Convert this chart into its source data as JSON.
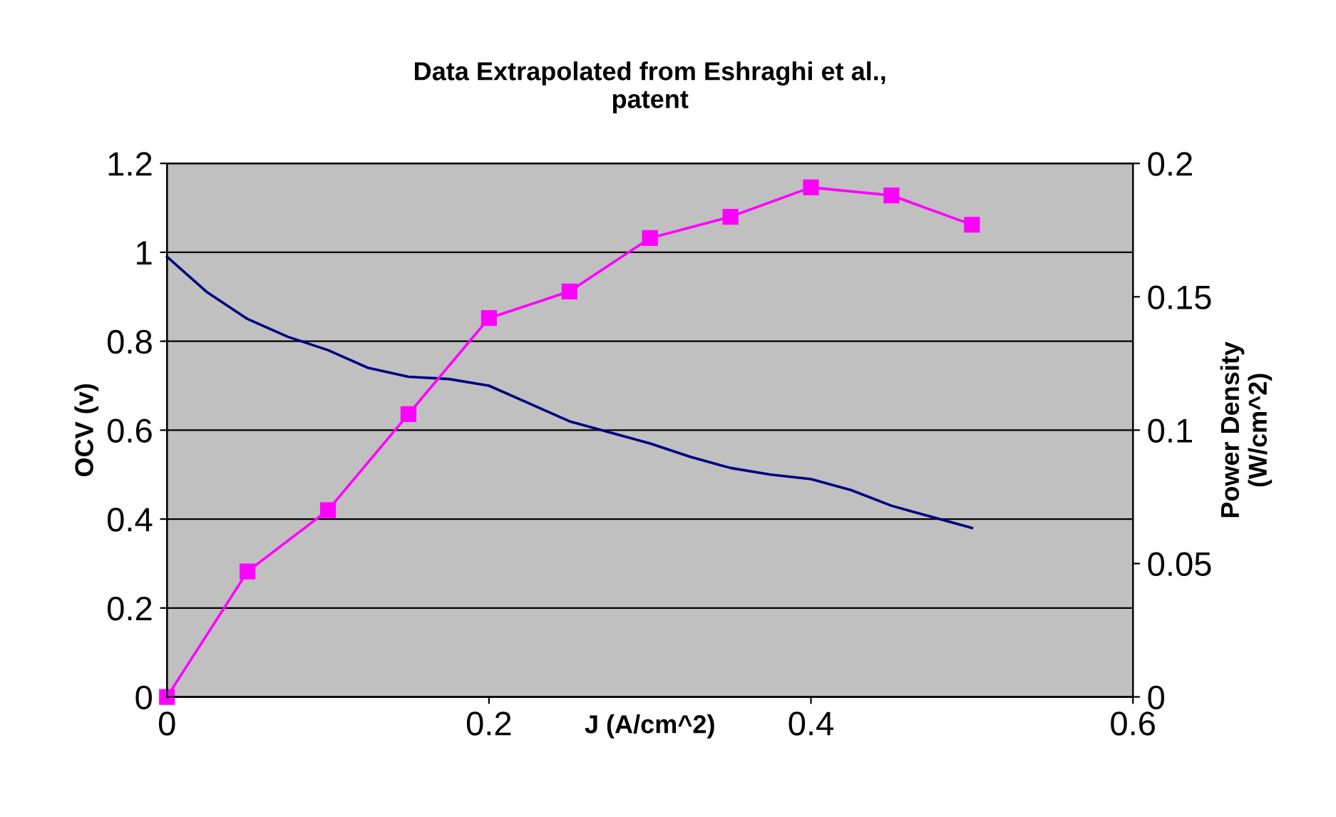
{
  "chart_data": {
    "type": "line",
    "title": "Data Extrapolated from Eshraghi et al.,\npatent",
    "xlabel": "J (A/cm^2)",
    "ylabel": "OCV (v)",
    "y2label": "Power Density\n(W/cm^2)",
    "xlim": [
      0,
      0.6
    ],
    "xticks": [
      0,
      0.2,
      0.4,
      0.6
    ],
    "ylim": [
      0,
      1.2
    ],
    "yticks": [
      0,
      0.2,
      0.4,
      0.6,
      0.8,
      1,
      1.2
    ],
    "y2lim": [
      0,
      0.2
    ],
    "y2ticks": [
      0,
      0.05,
      0.1,
      0.15,
      0.2
    ],
    "grid": "y",
    "legend": false,
    "series": [
      {
        "color": "#000080",
        "marker": "none",
        "x": [
          0,
          0.025,
          0.05,
          0.075,
          0.1,
          0.125,
          0.15,
          0.175,
          0.2,
          0.225,
          0.25,
          0.275,
          0.3,
          0.325,
          0.35,
          0.375,
          0.4,
          0.425,
          0.45,
          0.475,
          0.5
        ],
        "values": [
          0.99,
          0.91,
          0.85,
          0.81,
          0.78,
          0.74,
          0.72,
          0.715,
          0.7,
          0.66,
          0.62,
          0.595,
          0.57,
          0.54,
          0.515,
          0.5,
          0.49,
          0.465,
          0.43,
          0.405,
          0.38
        ]
      },
      {
        "color": "#ff00ff",
        "marker": "square",
        "axis": "y2",
        "x": [
          0,
          0.05,
          0.1,
          0.15,
          0.2,
          0.25,
          0.3,
          0.35,
          0.4,
          0.45,
          0.5
        ],
        "values": [
          0,
          0.047,
          0.07,
          0.106,
          0.142,
          0.152,
          0.172,
          0.18,
          0.191,
          0.188,
          0.177
        ]
      }
    ]
  }
}
